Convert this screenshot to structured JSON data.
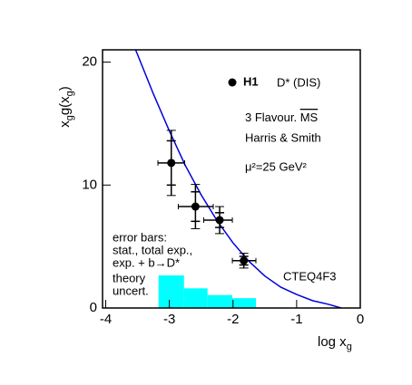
{
  "chart_data": {
    "type": "scatter",
    "xlim": [
      -4.05,
      0
    ],
    "ylim": [
      0,
      21
    ],
    "xticks": [
      -4,
      -3,
      -2,
      -1,
      0
    ],
    "yticks": [
      0,
      10,
      20
    ],
    "xlabel": {
      "main": "log x",
      "sub": "g"
    },
    "ylabel": {
      "a": "x",
      "a_sub": "g",
      "b": "g(x",
      "b_sub": "g",
      "c": ")"
    },
    "legend": {
      "name": "H1",
      "label": "D* (DIS)",
      "color": "#000000"
    },
    "annotations": {
      "flavour": "3 Flavour. ",
      "scheme": "MS",
      "authors": "Harris & Smith",
      "scale": "μ²=25 GeV²",
      "errors": [
        "error bars:",
        "stat., total exp.,",
        "exp. + b→D*"
      ],
      "theory": [
        "theory",
        "uncert."
      ]
    },
    "points": {
      "x": [
        -2.97,
        -2.59,
        -2.21,
        -1.83
      ],
      "y": [
        11.8,
        8.25,
        7.15,
        3.85
      ],
      "xlow": [
        -3.18,
        -2.86,
        -2.46,
        -2.01
      ],
      "xhigh": [
        -2.76,
        -2.31,
        -2.01,
        -1.64
      ],
      "err_stat": [
        1.8,
        1.2,
        0.6,
        0.35
      ],
      "err_total": [
        2.65,
        1.8,
        1.1,
        0.6
      ]
    },
    "curve": {
      "name": "CTEQ4F3",
      "color": "#0000dd",
      "x": [
        -3.53,
        -3.25,
        -3.0,
        -2.75,
        -2.5,
        -2.25,
        -2.0,
        -1.75,
        -1.5,
        -1.25,
        -1.0,
        -0.75,
        -0.5,
        -0.3
      ],
      "values": [
        21,
        17.4,
        14.4,
        11.6,
        9.2,
        7.1,
        5.3,
        3.8,
        2.6,
        1.7,
        1.1,
        0.6,
        0.3,
        0
      ]
    },
    "uncertainty": {
      "color": "#00ffff",
      "bins": [
        -3.17,
        -2.77,
        -2.4,
        -2.01,
        -1.64
      ],
      "counts": [
        2.65,
        1.6,
        1.05,
        0.8
      ]
    }
  }
}
